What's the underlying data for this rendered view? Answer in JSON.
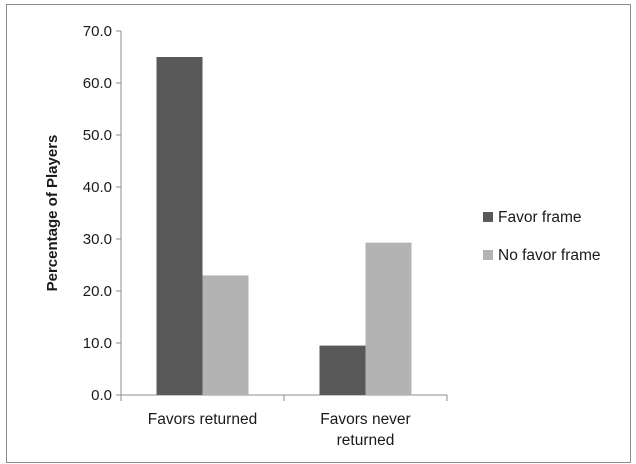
{
  "chart_data": {
    "type": "bar",
    "title": "",
    "xlabel": "",
    "ylabel": "Percentage of Players",
    "ylim": [
      0,
      70
    ],
    "yticks": [
      "0.0",
      "10.0",
      "20.0",
      "30.0",
      "40.0",
      "50.0",
      "60.0",
      "70.0"
    ],
    "categories": [
      {
        "lines": [
          "Favors returned"
        ]
      },
      {
        "lines": [
          "Favors never",
          "returned"
        ]
      }
    ],
    "series": [
      {
        "name": "Favor frame",
        "color": "#595959",
        "values": [
          65.0,
          9.5
        ]
      },
      {
        "name": "No favor frame",
        "color": "#b3b3b3",
        "values": [
          23.0,
          29.3
        ]
      }
    ],
    "grid": false,
    "legend": "right"
  }
}
